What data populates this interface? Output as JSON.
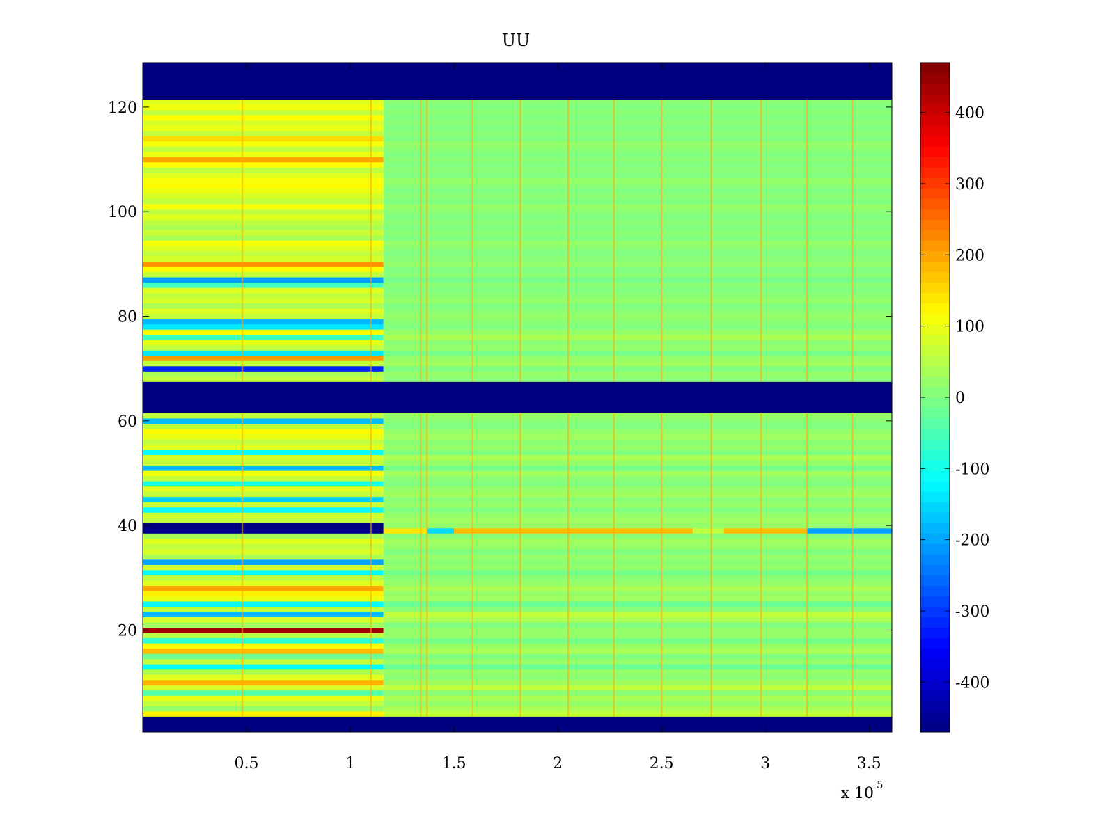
{
  "chart_data": {
    "type": "heatmap",
    "title": "UU",
    "xlabel": "",
    "ylabel": "",
    "x_multiplier_label": "x 10^5",
    "x_multiplier_base": "x 10",
    "x_multiplier_exp": "5",
    "xlim": [
      0,
      361000
    ],
    "ylim": [
      0.5,
      128.5
    ],
    "xticks": [
      50000,
      100000,
      150000,
      200000,
      250000,
      300000,
      350000
    ],
    "xtick_labels": [
      "0.5",
      "1",
      "1.5",
      "2",
      "2.5",
      "3",
      "3.5"
    ],
    "yticks": [
      20,
      40,
      60,
      80,
      100,
      120
    ],
    "ytick_labels": [
      "20",
      "40",
      "60",
      "80",
      "100",
      "120"
    ],
    "colorbar": {
      "colormap": "jet",
      "clim": [
        -470,
        470
      ],
      "ticks": [
        -400,
        -300,
        -200,
        -100,
        0,
        100,
        200,
        300,
        400
      ],
      "tick_labels": [
        "-400",
        "-300",
        "-200",
        "-100",
        "0",
        "100",
        "200",
        "300",
        "400"
      ]
    },
    "transition_x": 116000,
    "masked_rows": [
      [
        1,
        3
      ],
      [
        62,
        67
      ],
      [
        122,
        128
      ]
    ],
    "row_values_before_transition": [
      [
        4,
        130
      ],
      [
        5,
        20
      ],
      [
        6,
        60
      ],
      [
        7,
        100
      ],
      [
        8,
        -40
      ],
      [
        9,
        80
      ],
      [
        10,
        190
      ],
      [
        11,
        90
      ],
      [
        12,
        40
      ],
      [
        13,
        -120
      ],
      [
        14,
        60
      ],
      [
        15,
        -20
      ],
      [
        16,
        180
      ],
      [
        17,
        120
      ],
      [
        18,
        -80
      ],
      [
        19,
        60
      ],
      [
        20,
        440
      ],
      [
        21,
        30
      ],
      [
        22,
        80
      ],
      [
        23,
        -180
      ],
      [
        24,
        60
      ],
      [
        25,
        -120
      ],
      [
        26,
        100
      ],
      [
        27,
        130
      ],
      [
        28,
        200
      ],
      [
        29,
        90
      ],
      [
        30,
        50
      ],
      [
        31,
        -120
      ],
      [
        32,
        70
      ],
      [
        33,
        -200
      ],
      [
        34,
        40
      ],
      [
        35,
        80
      ],
      [
        36,
        60
      ],
      [
        37,
        90
      ],
      [
        38,
        40
      ],
      [
        39,
        -470
      ],
      [
        40,
        -470
      ],
      [
        41,
        60
      ],
      [
        42,
        80
      ],
      [
        43,
        -110
      ],
      [
        44,
        70
      ],
      [
        45,
        -160
      ],
      [
        46,
        60
      ],
      [
        47,
        90
      ],
      [
        48,
        -90
      ],
      [
        49,
        60
      ],
      [
        50,
        110
      ],
      [
        51,
        -180
      ],
      [
        52,
        60
      ],
      [
        53,
        80
      ],
      [
        54,
        -120
      ],
      [
        55,
        90
      ],
      [
        56,
        60
      ],
      [
        57,
        100
      ],
      [
        58,
        120
      ],
      [
        59,
        60
      ],
      [
        60,
        -180
      ],
      [
        61,
        60
      ],
      [
        68,
        60
      ],
      [
        69,
        40
      ],
      [
        70,
        -320
      ],
      [
        71,
        60
      ],
      [
        72,
        210
      ],
      [
        73,
        -140
      ],
      [
        74,
        60
      ],
      [
        75,
        90
      ],
      [
        76,
        -60
      ],
      [
        77,
        120
      ],
      [
        78,
        -140
      ],
      [
        79,
        -180
      ],
      [
        80,
        60
      ],
      [
        81,
        90
      ],
      [
        82,
        40
      ],
      [
        83,
        80
      ],
      [
        84,
        60
      ],
      [
        85,
        90
      ],
      [
        86,
        -60
      ],
      [
        87,
        -210
      ],
      [
        88,
        60
      ],
      [
        89,
        120
      ],
      [
        90,
        220
      ],
      [
        91,
        80
      ],
      [
        92,
        60
      ],
      [
        93,
        90
      ],
      [
        94,
        110
      ],
      [
        95,
        40
      ],
      [
        96,
        70
      ],
      [
        97,
        40
      ],
      [
        98,
        60
      ],
      [
        99,
        90
      ],
      [
        100,
        60
      ],
      [
        101,
        110
      ],
      [
        102,
        60
      ],
      [
        103,
        80
      ],
      [
        104,
        100
      ],
      [
        105,
        120
      ],
      [
        106,
        110
      ],
      [
        107,
        90
      ],
      [
        108,
        60
      ],
      [
        109,
        120
      ],
      [
        110,
        200
      ],
      [
        111,
        100
      ],
      [
        112,
        60
      ],
      [
        113,
        110
      ],
      [
        114,
        150
      ],
      [
        115,
        60
      ],
      [
        116,
        100
      ],
      [
        117,
        80
      ],
      [
        118,
        120
      ],
      [
        119,
        60
      ],
      [
        120,
        110
      ],
      [
        121,
        90
      ]
    ],
    "row_values_after_transition": [
      [
        4,
        60
      ],
      [
        5,
        40
      ],
      [
        6,
        20
      ],
      [
        7,
        40
      ],
      [
        8,
        10
      ],
      [
        9,
        60
      ],
      [
        10,
        30
      ],
      [
        11,
        10
      ],
      [
        12,
        20
      ],
      [
        13,
        -20
      ],
      [
        14,
        20
      ],
      [
        15,
        0
      ],
      [
        16,
        40
      ],
      [
        17,
        20
      ],
      [
        18,
        -10
      ],
      [
        19,
        20
      ],
      [
        20,
        20
      ],
      [
        21,
        0
      ],
      [
        22,
        40
      ],
      [
        23,
        60
      ],
      [
        24,
        10
      ],
      [
        25,
        -20
      ],
      [
        26,
        30
      ],
      [
        27,
        20
      ],
      [
        28,
        40
      ],
      [
        29,
        20
      ],
      [
        30,
        10
      ],
      [
        31,
        -10
      ],
      [
        32,
        20
      ],
      [
        33,
        10
      ],
      [
        34,
        20
      ],
      [
        35,
        0
      ],
      [
        36,
        20
      ],
      [
        37,
        30
      ],
      [
        38,
        10
      ],
      [
        39,
        140
      ],
      [
        40,
        20
      ],
      [
        41,
        30
      ],
      [
        42,
        20
      ],
      [
        43,
        0
      ],
      [
        44,
        20
      ],
      [
        45,
        10
      ],
      [
        46,
        30
      ],
      [
        47,
        20
      ],
      [
        48,
        0
      ],
      [
        49,
        10
      ],
      [
        50,
        30
      ],
      [
        51,
        -10
      ],
      [
        52,
        20
      ],
      [
        53,
        40
      ],
      [
        54,
        0
      ],
      [
        55,
        20
      ],
      [
        56,
        10
      ],
      [
        57,
        30
      ],
      [
        58,
        20
      ],
      [
        59,
        0
      ],
      [
        60,
        10
      ],
      [
        61,
        20
      ],
      [
        68,
        10
      ],
      [
        69,
        20
      ],
      [
        70,
        0
      ],
      [
        71,
        30
      ],
      [
        72,
        20
      ],
      [
        73,
        -10
      ],
      [
        74,
        20
      ],
      [
        75,
        10
      ],
      [
        76,
        40
      ],
      [
        77,
        20
      ],
      [
        78,
        0
      ],
      [
        79,
        10
      ],
      [
        80,
        20
      ],
      [
        81,
        10
      ],
      [
        82,
        0
      ],
      [
        83,
        20
      ],
      [
        84,
        10
      ],
      [
        85,
        0
      ],
      [
        86,
        10
      ],
      [
        87,
        -10
      ],
      [
        88,
        10
      ],
      [
        89,
        0
      ],
      [
        90,
        20
      ],
      [
        91,
        10
      ],
      [
        92,
        0
      ],
      [
        93,
        10
      ],
      [
        94,
        20
      ],
      [
        95,
        0
      ],
      [
        96,
        10
      ],
      [
        97,
        0
      ],
      [
        98,
        10
      ],
      [
        99,
        0
      ],
      [
        100,
        10
      ],
      [
        101,
        20
      ],
      [
        102,
        0
      ],
      [
        103,
        10
      ],
      [
        104,
        0
      ],
      [
        105,
        10
      ],
      [
        106,
        20
      ],
      [
        107,
        0
      ],
      [
        108,
        10
      ],
      [
        109,
        0
      ],
      [
        110,
        10
      ],
      [
        111,
        0
      ],
      [
        112,
        10
      ],
      [
        113,
        20
      ],
      [
        114,
        0
      ],
      [
        115,
        10
      ],
      [
        116,
        0
      ],
      [
        117,
        10
      ],
      [
        118,
        0
      ],
      [
        119,
        10
      ],
      [
        120,
        0
      ],
      [
        121,
        10
      ]
    ],
    "spike_columns_x": [
      48000,
      110000,
      134000,
      137000,
      159000,
      182000,
      205000,
      227000,
      250000,
      274000,
      298000,
      320000,
      342000
    ],
    "spike_value": 200,
    "row39_after_segments": [
      [
        116000,
        137000,
        140
      ],
      [
        137000,
        150000,
        -150
      ],
      [
        150000,
        265000,
        180
      ],
      [
        265000,
        280000,
        60
      ],
      [
        280000,
        320000,
        180
      ],
      [
        320000,
        361000,
        -200
      ]
    ]
  }
}
